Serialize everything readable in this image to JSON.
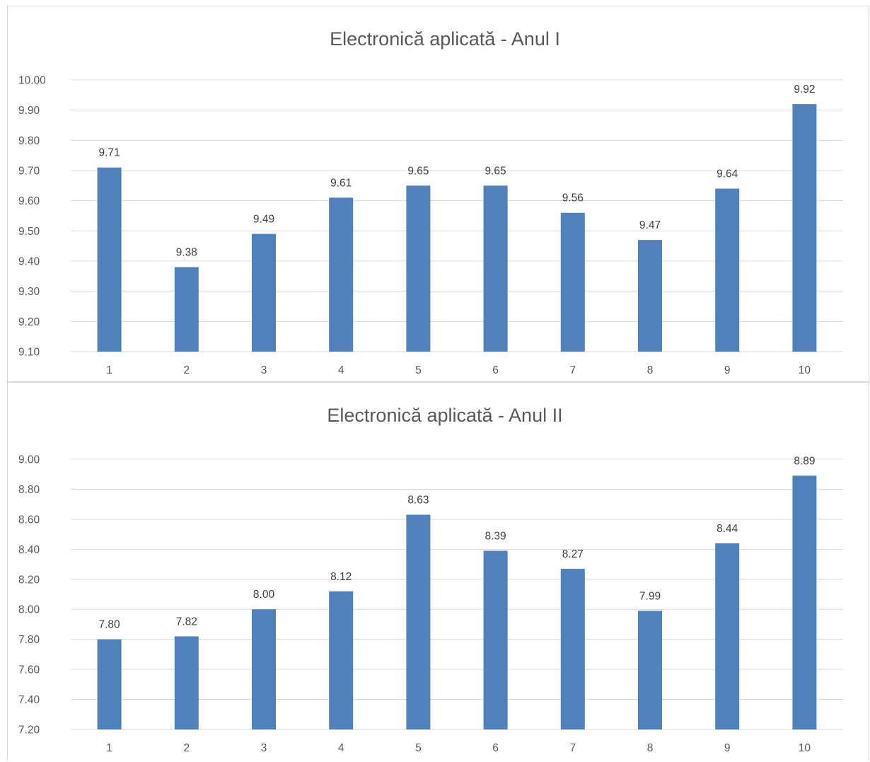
{
  "chart_data": [
    {
      "type": "bar",
      "title": "Electronică aplicată - Anul I",
      "categories": [
        "1",
        "2",
        "3",
        "4",
        "5",
        "6",
        "7",
        "8",
        "9",
        "10"
      ],
      "values": [
        9.71,
        9.38,
        9.49,
        9.61,
        9.65,
        9.65,
        9.56,
        9.47,
        9.64,
        9.92
      ],
      "data_labels": [
        "9.71",
        "9.38",
        "9.49",
        "9.61",
        "9.65",
        "9.65",
        "9.56",
        "9.47",
        "9.64",
        "9.92"
      ],
      "ylim": [
        9.1,
        10.0
      ],
      "yticks": [
        "9.10",
        "9.20",
        "9.30",
        "9.40",
        "9.50",
        "9.60",
        "9.70",
        "9.80",
        "9.90",
        "10.00"
      ],
      "xlabel": "",
      "ylabel": "",
      "grid": true,
      "legend": "none",
      "bar_color": "#4f81bd"
    },
    {
      "type": "bar",
      "title": "Electronică aplicată - Anul II",
      "categories": [
        "1",
        "2",
        "3",
        "4",
        "5",
        "6",
        "7",
        "8",
        "9",
        "10"
      ],
      "values": [
        7.8,
        7.82,
        8.0,
        8.12,
        8.63,
        8.39,
        8.27,
        7.99,
        8.44,
        8.89
      ],
      "data_labels": [
        "7.80",
        "7.82",
        "8.00",
        "8.12",
        "8.63",
        "8.39",
        "8.27",
        "7.99",
        "8.44",
        "8.89"
      ],
      "ylim": [
        7.2,
        9.0
      ],
      "yticks": [
        "7.20",
        "7.40",
        "7.60",
        "7.80",
        "8.00",
        "8.20",
        "8.40",
        "8.60",
        "8.80",
        "9.00"
      ],
      "xlabel": "",
      "ylabel": "",
      "grid": true,
      "legend": "none",
      "bar_color": "#4f81bd"
    }
  ]
}
